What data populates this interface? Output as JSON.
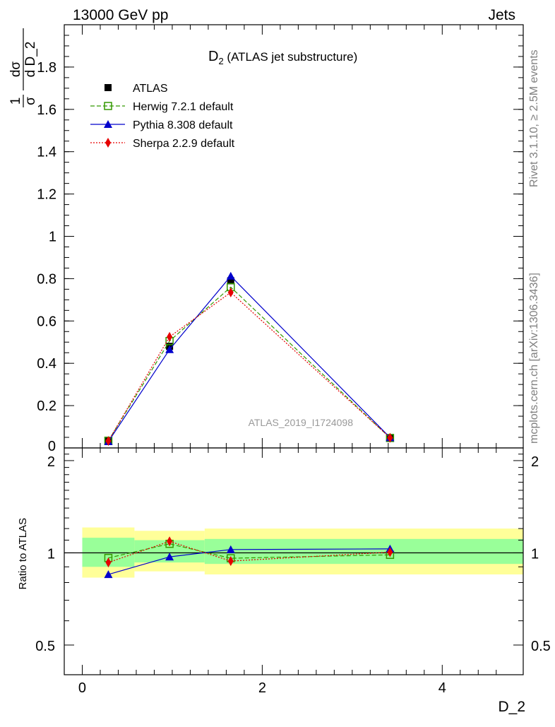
{
  "header": {
    "left": "13000 GeV pp",
    "right": "Jets"
  },
  "side_labels": {
    "top": "Rivet 3.1.10, ≥ 2.5M events",
    "bottom": "mcplots.cern.ch [arXiv:1306.3436]"
  },
  "watermark": "ATLAS_2019_I1724098",
  "chart_data": [
    {
      "type": "line",
      "title": "D",
      "title_sub": "2",
      "title_rest": " (ATLAS jet substructure)",
      "ylabel": "dσ / d D_2 (1/σ)",
      "ylabel_parts": {
        "one": "1",
        "sigma": "σ",
        "d1": "d",
        "d2": "d",
        "dsigma": "dσ",
        "dD2": "d D_2"
      },
      "xlim": [
        -0.2,
        4.9
      ],
      "ylim": [
        0,
        2.0
      ],
      "yticks": [
        0.2,
        0.4,
        0.6,
        0.8,
        1,
        1.2,
        1.4,
        1.6,
        1.8
      ],
      "ytick_labels": [
        "0.2",
        "0.4",
        "0.6",
        "0.8",
        "1",
        "1.2",
        "1.4",
        "1.6",
        "1.8"
      ],
      "y_zero_label": "0",
      "legend_position": "top-left",
      "x_bins": [
        [
          0,
          0.58
        ],
        [
          0.58,
          1.36
        ],
        [
          1.36,
          1.95
        ],
        [
          1.95,
          4.9
        ]
      ],
      "x": [
        0.29,
        0.97,
        1.65,
        3.42
      ],
      "series": [
        {
          "name": "ATLAS",
          "color": "#000000",
          "marker": "square-filled",
          "line": "none",
          "values": [
            0.035,
            0.48,
            0.79,
            0.048
          ]
        },
        {
          "name": "Herwig 7.2.1 default",
          "color": "#339900",
          "marker": "square-open",
          "line": "dashed",
          "values": [
            0.034,
            0.505,
            0.76,
            0.047
          ]
        },
        {
          "name": "Pythia 8.308 default",
          "color": "#0000cc",
          "marker": "triangle",
          "line": "solid",
          "values": [
            0.03,
            0.465,
            0.812,
            0.049
          ]
        },
        {
          "name": "Sherpa 2.2.9 default",
          "color": "#e60000",
          "marker": "diamond",
          "line": "dotted",
          "values": [
            0.033,
            0.525,
            0.735,
            0.048
          ]
        }
      ]
    },
    {
      "type": "line",
      "ylabel": "Ratio to ATLAS",
      "xlabel": "D_2",
      "xlim": [
        -0.2,
        4.9
      ],
      "ylim": [
        0.4,
        2.2
      ],
      "xticks": [
        0,
        2,
        4
      ],
      "xtick_labels": [
        "0",
        "2",
        "4"
      ],
      "yticks": [
        0.5,
        1,
        2
      ],
      "ytick_labels": [
        "0.5",
        "1",
        "2"
      ],
      "bands": [
        {
          "x0": 0,
          "x1": 0.58,
          "yellow": [
            0.83,
            1.21
          ],
          "green": [
            0.9,
            1.12
          ]
        },
        {
          "x0": 0.58,
          "x1": 1.36,
          "yellow": [
            0.87,
            1.18
          ],
          "green": [
            0.93,
            1.1
          ]
        },
        {
          "x0": 1.36,
          "x1": 1.95,
          "yellow": [
            0.85,
            1.2
          ],
          "green": [
            0.92,
            1.11
          ]
        },
        {
          "x0": 1.95,
          "x1": 4.9,
          "yellow": [
            0.85,
            1.2
          ],
          "green": [
            0.92,
            1.11
          ]
        }
      ],
      "band_colors": {
        "yellow": "#ffff99",
        "green": "#99ff99"
      },
      "x": [
        0.29,
        0.97,
        1.65,
        3.42
      ],
      "series": [
        {
          "name": "Herwig 7.2.1 default",
          "color": "#339900",
          "marker": "square-open",
          "line": "dashed",
          "values": [
            0.962,
            1.07,
            0.96,
            0.985
          ]
        },
        {
          "name": "Pythia 8.308 default",
          "color": "#0000cc",
          "marker": "triangle",
          "line": "solid",
          "values": [
            0.85,
            0.97,
            1.025,
            1.03
          ]
        },
        {
          "name": "Sherpa 2.2.9 default",
          "color": "#e60000",
          "marker": "diamond",
          "line": "dotted",
          "values": [
            0.93,
            1.09,
            0.94,
            1.005
          ]
        }
      ]
    }
  ]
}
